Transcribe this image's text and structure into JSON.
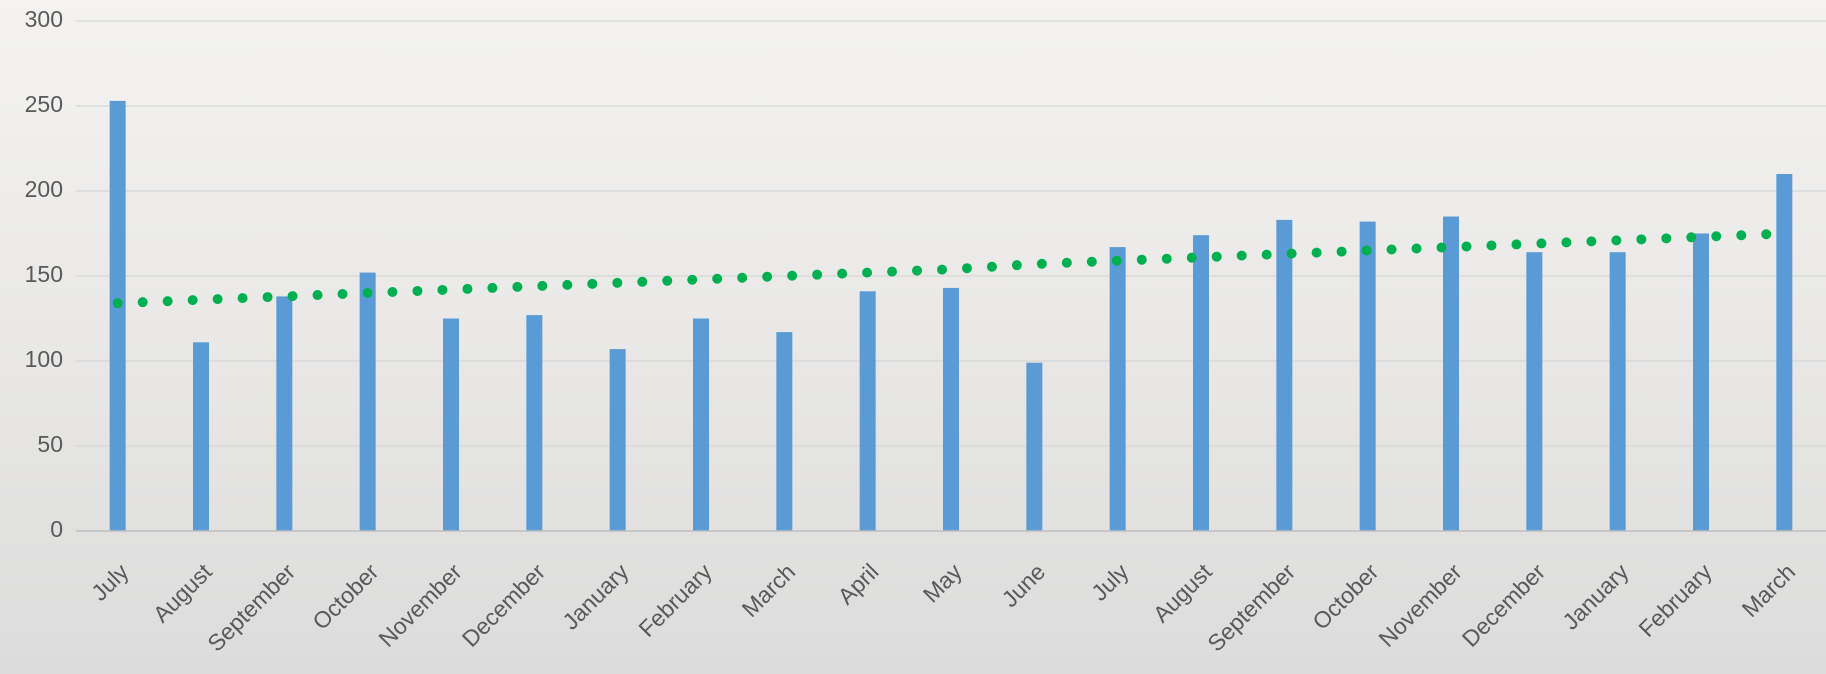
{
  "chart_data": {
    "type": "bar",
    "categories": [
      "July",
      "August",
      "September",
      "October",
      "November",
      "December",
      "January",
      "February",
      "March",
      "April",
      "May",
      "June",
      "July",
      "August",
      "September",
      "October",
      "November",
      "December",
      "January",
      "February",
      "March"
    ],
    "values": [
      253,
      111,
      138,
      152,
      125,
      127,
      107,
      125,
      117,
      141,
      143,
      99,
      167,
      174,
      183,
      182,
      185,
      164,
      164,
      175,
      210
    ],
    "color": "#5b9bd5",
    "trend": {
      "color": "#00b050",
      "values": [
        134,
        136,
        138,
        140,
        142,
        144,
        146,
        148,
        150,
        152,
        154,
        157,
        159,
        161,
        163,
        165,
        167,
        169,
        171,
        173,
        175
      ]
    },
    "ylim": [
      0,
      300
    ],
    "yticks": [
      0,
      50,
      100,
      150,
      200,
      250,
      300
    ],
    "grid": true
  }
}
